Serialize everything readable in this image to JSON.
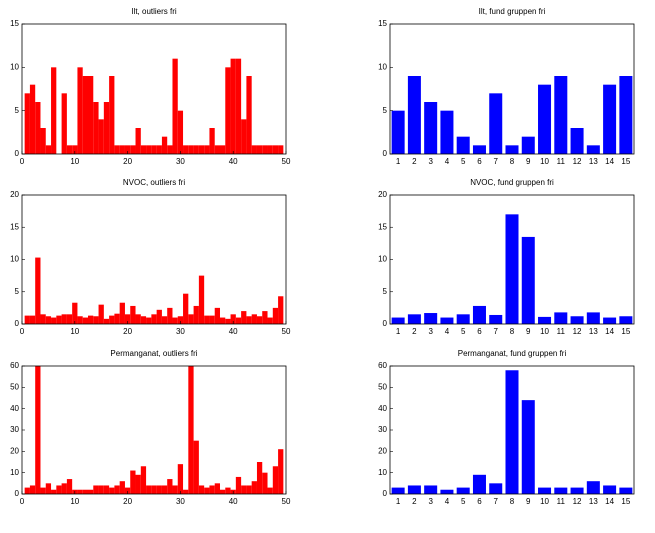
{
  "chart_data": [
    {
      "type": "bar",
      "title": "Ilt, outliers fri",
      "color": "#ff0000",
      "x": [
        1,
        2,
        3,
        4,
        5,
        6,
        7,
        8,
        9,
        10,
        11,
        12,
        13,
        14,
        15,
        16,
        17,
        18,
        19,
        20,
        21,
        22,
        23,
        24,
        25,
        26,
        27,
        28,
        29,
        30,
        31,
        32,
        33,
        34,
        35,
        36,
        37,
        38,
        39,
        40,
        41,
        42,
        43,
        44,
        45,
        46,
        47,
        48,
        49
      ],
      "values": [
        7,
        8,
        6,
        3,
        1,
        10,
        0,
        7,
        1,
        1,
        10,
        9,
        9,
        6,
        4,
        6,
        9,
        1,
        1,
        1,
        1,
        3,
        1,
        1,
        1,
        1,
        2,
        1,
        11,
        5,
        1,
        1,
        1,
        1,
        1,
        3,
        1,
        1,
        10,
        11,
        11,
        4,
        9,
        1,
        1,
        1,
        1,
        1,
        1
      ],
      "xlim": [
        0,
        50
      ],
      "xticks": [
        0,
        10,
        20,
        30,
        40,
        50
      ],
      "ylim": [
        0,
        15
      ],
      "yticks": [
        0,
        5,
        10,
        15
      ]
    },
    {
      "type": "category-bar",
      "title": "Ilt, fund gruppen fri",
      "color": "#0000ff",
      "categories": [
        "1",
        "2",
        "3",
        "4",
        "5",
        "6",
        "7",
        "8",
        "9",
        "10",
        "11",
        "12",
        "13",
        "14",
        "15"
      ],
      "values": [
        5,
        9,
        6,
        5,
        2,
        1,
        7,
        1,
        2,
        8,
        9,
        3,
        1,
        8,
        9
      ],
      "ylim": [
        0,
        15
      ],
      "yticks": [
        0,
        5,
        10,
        15
      ]
    },
    {
      "type": "bar",
      "title": "NVOC, outliers fri",
      "color": "#ff0000",
      "x": [
        1,
        2,
        3,
        4,
        5,
        6,
        7,
        8,
        9,
        10,
        11,
        12,
        13,
        14,
        15,
        16,
        17,
        18,
        19,
        20,
        21,
        22,
        23,
        24,
        25,
        26,
        27,
        28,
        29,
        30,
        31,
        32,
        33,
        34,
        35,
        36,
        37,
        38,
        39,
        40,
        41,
        42,
        43,
        44,
        45,
        46,
        47,
        48,
        49
      ],
      "values": [
        1.3,
        1.3,
        10.3,
        1.5,
        1.2,
        1.0,
        1.3,
        1.5,
        1.5,
        3.3,
        1.2,
        1.0,
        1.3,
        1.2,
        3.0,
        0.8,
        1.3,
        1.6,
        3.3,
        1.5,
        2.8,
        1.5,
        1.2,
        1.0,
        1.5,
        2.2,
        1.2,
        2.5,
        1.0,
        1.2,
        4.7,
        1.5,
        2.8,
        7.5,
        1.3,
        1.3,
        2.5,
        1.0,
        0.8,
        1.5,
        1.0,
        2.0,
        1.2,
        1.5,
        1.2,
        2.0,
        1.0,
        2.5,
        4.3
      ],
      "xlim": [
        0,
        50
      ],
      "xticks": [
        0,
        10,
        20,
        30,
        40,
        50
      ],
      "ylim": [
        0,
        20
      ],
      "yticks": [
        0,
        5,
        10,
        15,
        20
      ]
    },
    {
      "type": "category-bar",
      "title": "NVOC, fund gruppen fri",
      "color": "#0000ff",
      "categories": [
        "1",
        "2",
        "3",
        "4",
        "5",
        "6",
        "7",
        "8",
        "9",
        "10",
        "11",
        "12",
        "13",
        "14",
        "15"
      ],
      "values": [
        1,
        1.5,
        1.7,
        1,
        1.5,
        2.8,
        1.4,
        17,
        13.5,
        1.1,
        1.8,
        1.2,
        1.8,
        1,
        1.2
      ],
      "ylim": [
        0,
        20
      ],
      "yticks": [
        0,
        5,
        10,
        15,
        20
      ]
    },
    {
      "type": "bar",
      "title": "Permanganat, outliers fri",
      "color": "#ff0000",
      "x": [
        1,
        2,
        3,
        4,
        5,
        6,
        7,
        8,
        9,
        10,
        11,
        12,
        13,
        14,
        15,
        16,
        17,
        18,
        19,
        20,
        21,
        22,
        23,
        24,
        25,
        26,
        27,
        28,
        29,
        30,
        31,
        32,
        33,
        34,
        35,
        36,
        37,
        38,
        39,
        40,
        41,
        42,
        43,
        44,
        45,
        46,
        47,
        48,
        49
      ],
      "values": [
        3,
        4,
        60,
        3,
        5,
        2,
        4,
        5,
        7,
        2,
        2,
        2,
        2,
        4,
        4,
        4,
        3,
        4,
        6,
        3,
        11,
        9,
        13,
        4,
        4,
        4,
        4,
        7,
        4,
        14,
        2,
        60,
        25,
        4,
        3,
        4,
        5,
        2,
        3,
        2,
        8,
        4,
        4,
        6,
        15,
        10,
        3,
        13,
        21
      ],
      "xlim": [
        0,
        50
      ],
      "xticks": [
        0,
        10,
        20,
        30,
        40,
        50
      ],
      "ylim": [
        0,
        60
      ],
      "yticks": [
        0,
        10,
        20,
        30,
        40,
        50,
        60
      ]
    },
    {
      "type": "category-bar",
      "title": "Permanganat, fund gruppen fri",
      "color": "#0000ff",
      "categories": [
        "1",
        "2",
        "3",
        "4",
        "5",
        "6",
        "7",
        "8",
        "9",
        "10",
        "11",
        "12",
        "13",
        "14",
        "15"
      ],
      "values": [
        3,
        4,
        4,
        2,
        3,
        9,
        5,
        58,
        44,
        3,
        3,
        3,
        6,
        4,
        3
      ],
      "ylim": [
        0,
        60
      ],
      "yticks": [
        0,
        10,
        20,
        30,
        40,
        50,
        60
      ]
    }
  ]
}
